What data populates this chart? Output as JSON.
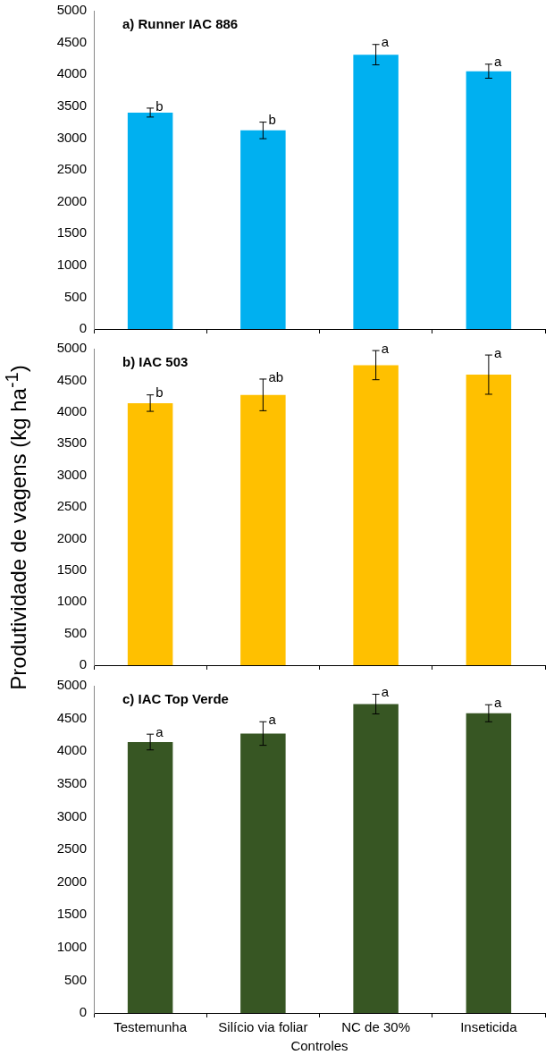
{
  "chart_data": [
    {
      "type": "bar",
      "title": "a) Runner IAC 886",
      "categories": [
        "Testemunha",
        "Silício via foliar",
        "NC de 30%",
        "Inseticida"
      ],
      "values": [
        3400,
        3120,
        4310,
        4050
      ],
      "errors": [
        70,
        130,
        160,
        110
      ],
      "color": "#00b0f0",
      "ylim": [
        0,
        5000
      ],
      "yticks": [
        0,
        500,
        1000,
        1500,
        2000,
        2500,
        3000,
        3500,
        4000,
        4500,
        5000
      ],
      "tick_labels": "y",
      "annotations": [
        {
          "text": "b",
          "x": "Testemunha",
          "y": 3400
        },
        {
          "text": "b",
          "x": "Silício via foliar",
          "y": 3120
        },
        {
          "text": "a",
          "x": "NC de 30%",
          "y": 4310
        },
        {
          "text": "a",
          "x": "Inseticida",
          "y": 4050
        }
      ]
    },
    {
      "type": "bar",
      "title": "b) IAC 503",
      "ylabel": "Produtividade de vagens (kg ha$^{-1}$)",
      "categories": [
        "Testemunha",
        "Silício via foliar",
        "NC de 30%",
        "Inseticida"
      ],
      "values": [
        4140,
        4270,
        4740,
        4590
      ],
      "errors": [
        130,
        250,
        230,
        310
      ],
      "color": "#ffc000",
      "ylim": [
        0,
        5000
      ],
      "yticks": [
        0,
        500,
        1000,
        1500,
        2000,
        2500,
        3000,
        3500,
        4000,
        4500,
        5000
      ],
      "tick_labels": "y",
      "annotations": [
        {
          "text": "b",
          "x": "Testemunha",
          "y": 4140
        },
        {
          "text": "ab",
          "x": "Silício via foliar",
          "y": 4270
        },
        {
          "text": "a",
          "x": "NC de 30%",
          "y": 4740
        },
        {
          "text": "a",
          "x": "Inseticida",
          "y": 4590
        }
      ]
    },
    {
      "type": "bar",
      "title": "c) IAC Top Verde",
      "xlabel": "Controles",
      "categories": [
        "Testemunha",
        "Silício via foliar",
        "NC de 30%",
        "Inseticida"
      ],
      "values": [
        4140,
        4270,
        4720,
        4580
      ],
      "errors": [
        120,
        180,
        150,
        130
      ],
      "color": "#375623",
      "ylim": [
        0,
        5000
      ],
      "yticks": [
        0,
        500,
        1000,
        1500,
        2000,
        2500,
        3000,
        3500,
        4000,
        4500,
        5000
      ],
      "annotations": [
        {
          "text": "a",
          "x": "Testemunha",
          "y": 4140
        },
        {
          "text": "a",
          "x": "Silício via foliar",
          "y": 4270
        },
        {
          "text": "a",
          "x": "NC de 30%",
          "y": 4720
        },
        {
          "text": "a",
          "x": "Inseticida",
          "y": 4580
        }
      ]
    }
  ]
}
